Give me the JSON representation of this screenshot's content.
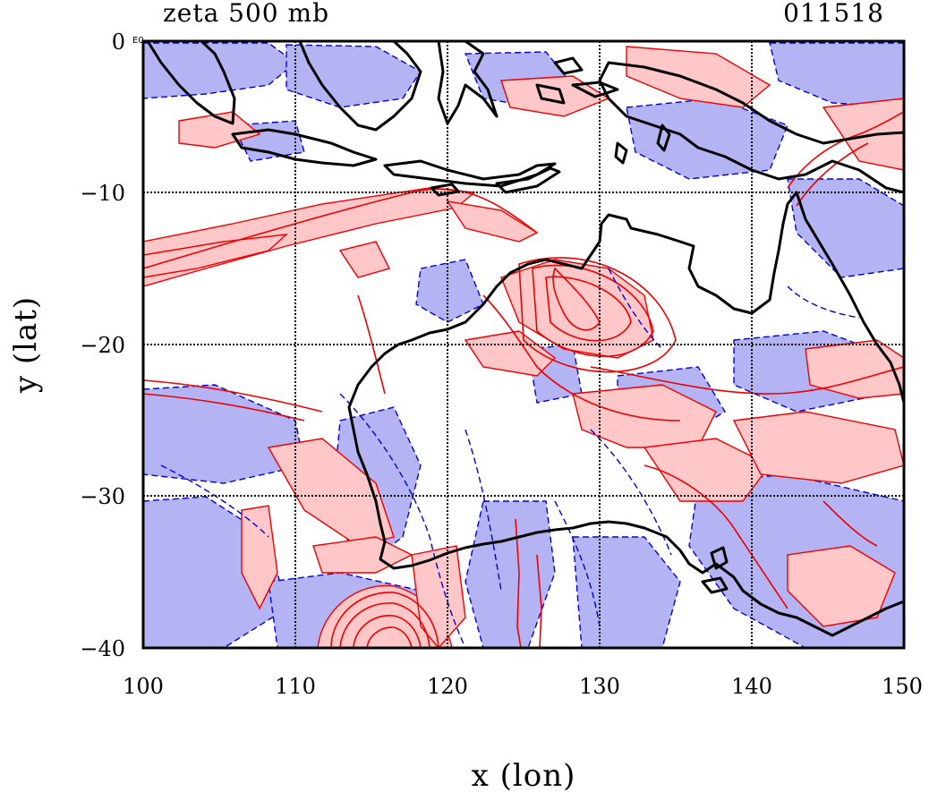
{
  "header": {
    "left_title": "zeta 500 mb",
    "right_title": "011518"
  },
  "corner_label": "E0",
  "axes": {
    "xlabel": "x (lon)",
    "ylabel": "y (lat)",
    "x_ticks": [
      "100",
      "110",
      "120",
      "130",
      "140",
      "150"
    ],
    "y_ticks": [
      "0",
      "−10",
      "−20",
      "−30",
      "−40"
    ],
    "x_range": [
      100,
      150
    ],
    "y_range": [
      -40,
      0
    ],
    "grid": true
  },
  "colors": {
    "positive_fill": "#ffc7c7",
    "positive_contour": "#ee0000",
    "negative_fill": "#b4b4f4",
    "negative_contour": "#0000dd",
    "coastline": "#000000"
  }
}
